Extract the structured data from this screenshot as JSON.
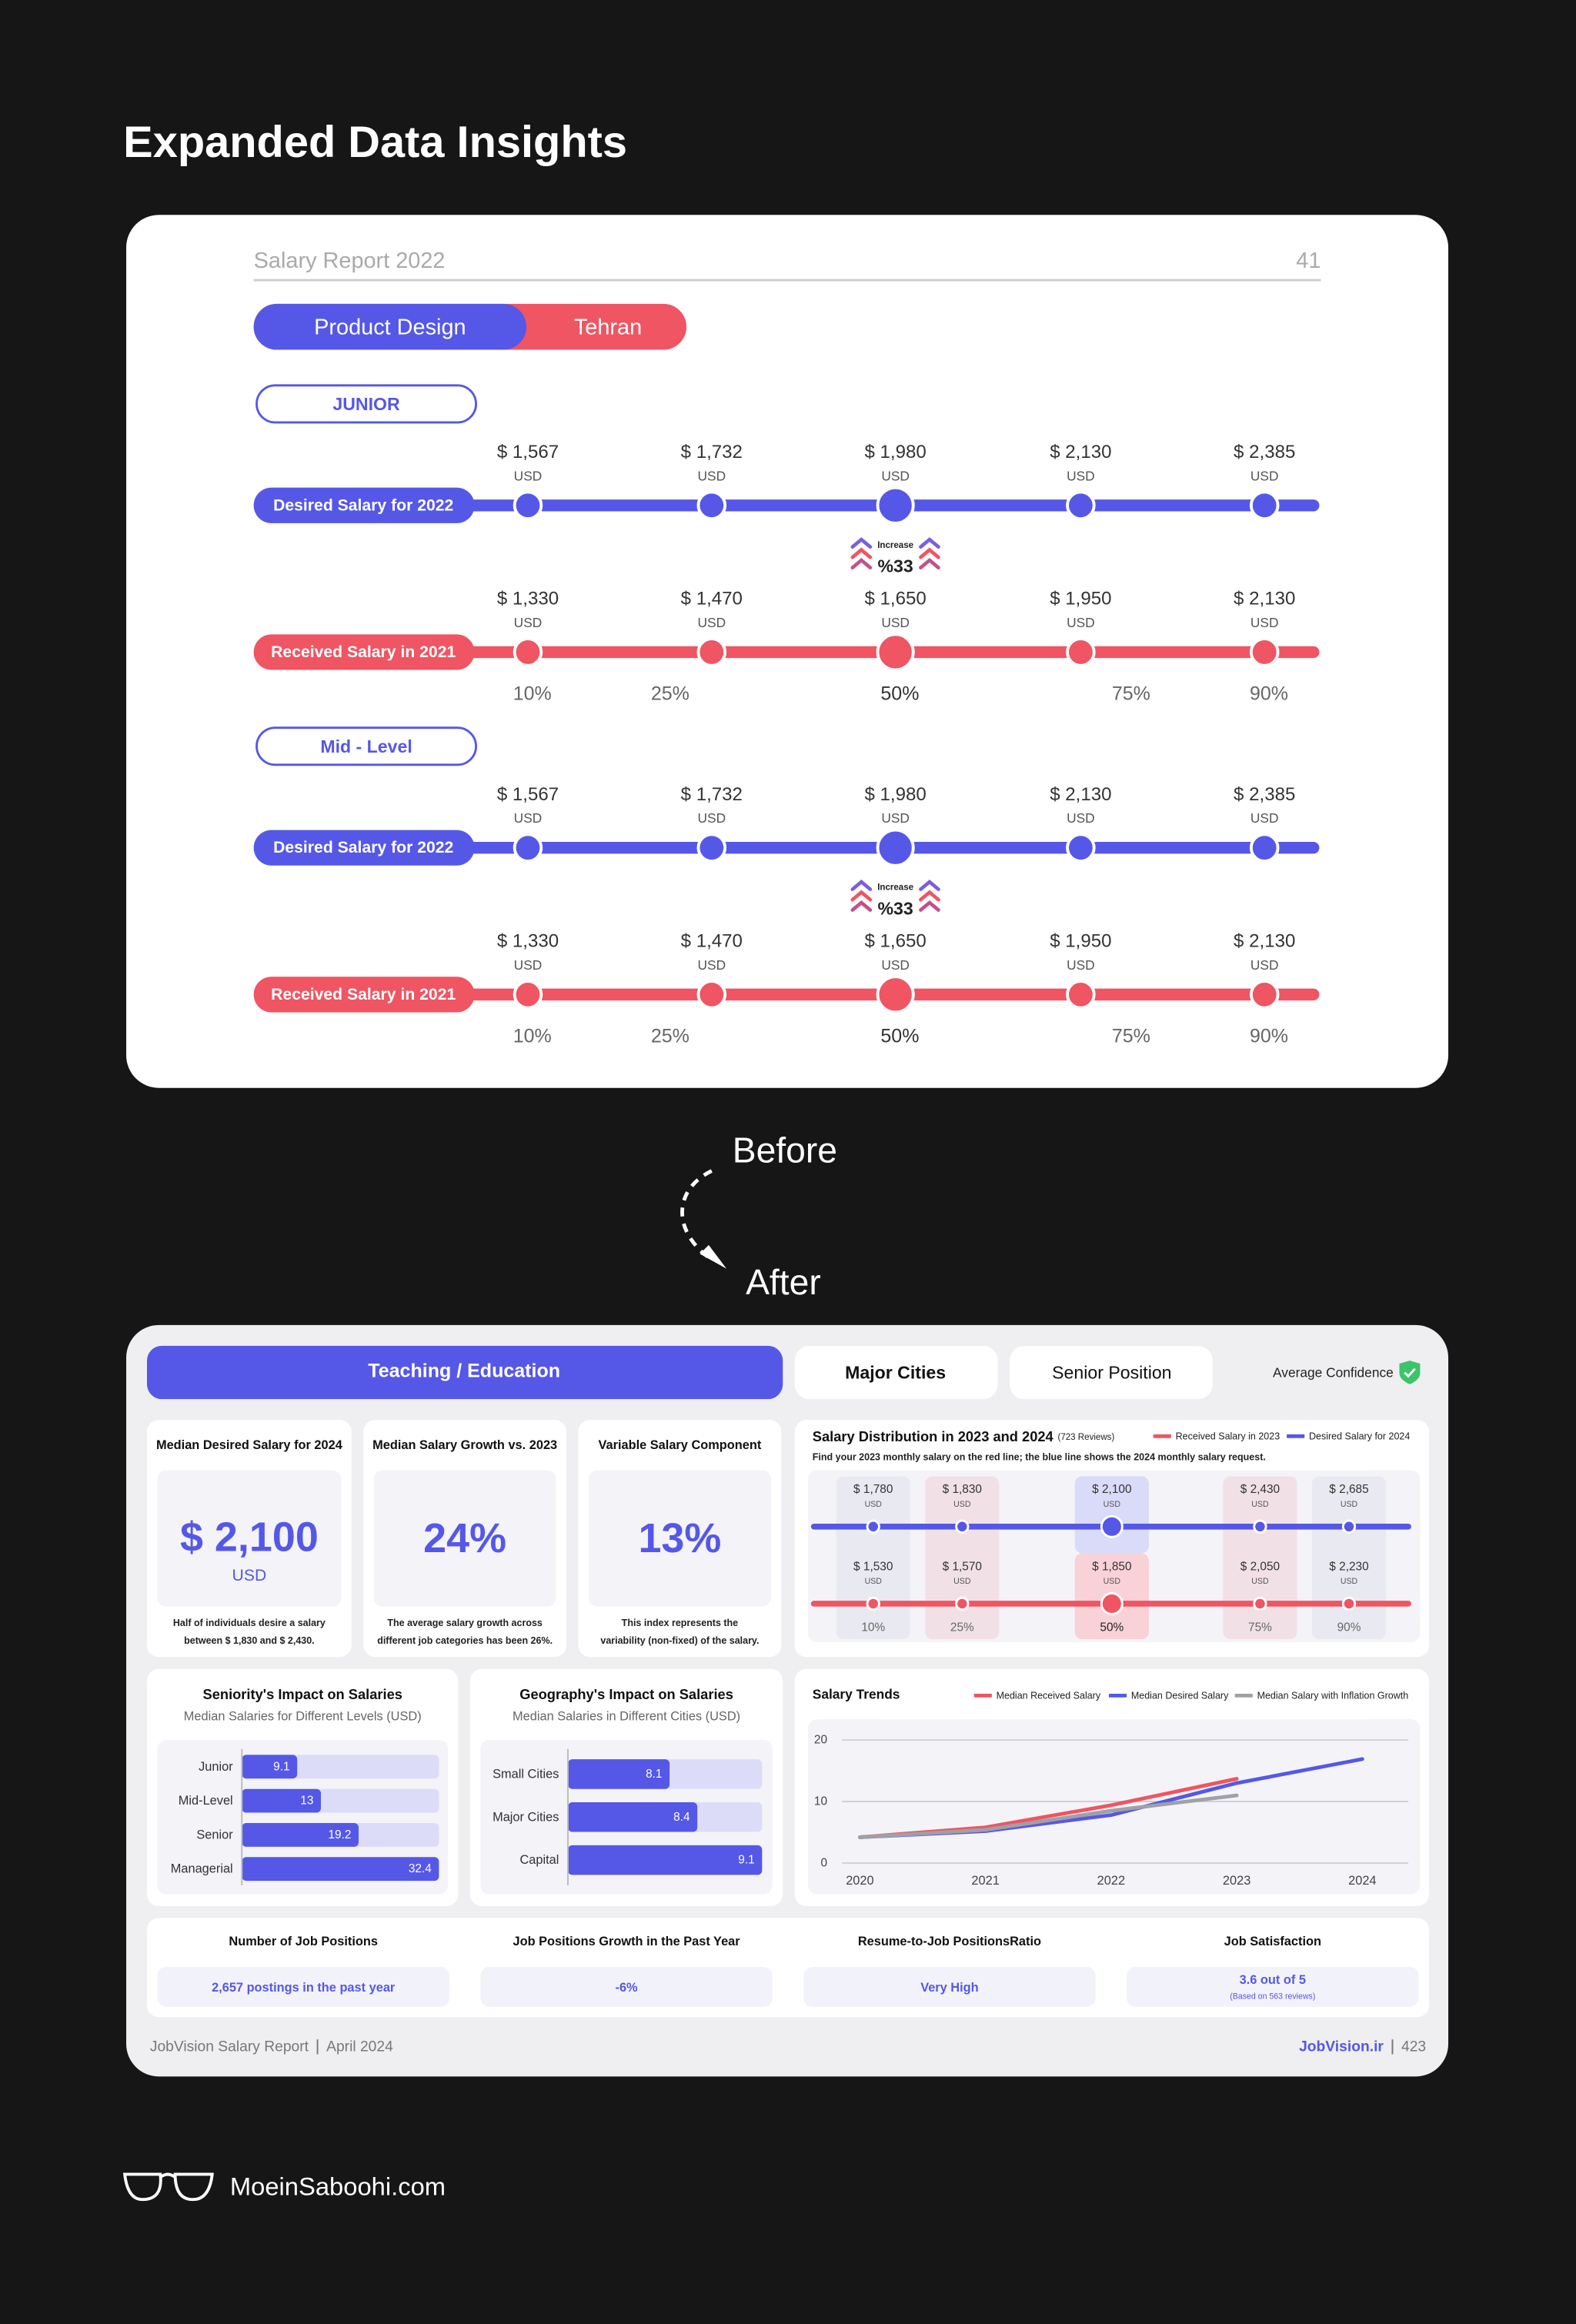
{
  "page_title": "Expanded Data Insights",
  "before": {
    "report_title": "Salary Report 2022",
    "page_number": "41",
    "tabs": [
      "Product Design",
      "Tehran"
    ],
    "currency": "USD",
    "percentiles": [
      "10%",
      "25%",
      "50%",
      "75%",
      "90%"
    ],
    "sections": [
      {
        "level": "JUNIOR",
        "desired_label": "Desired Salary for 2022",
        "desired": [
          "$ 1,567",
          "$ 1,732",
          "$ 1,980",
          "$ 2,130",
          "$ 2,385"
        ],
        "increase_label": "Increase",
        "increase_value": "%33",
        "received_label": "Received Salary in 2021",
        "received": [
          "$ 1,330",
          "$ 1,470",
          "$ 1,650",
          "$ 1,950",
          "$ 2,130"
        ]
      },
      {
        "level": "Mid - Level",
        "desired_label": "Desired Salary for 2022",
        "desired": [
          "$ 1,567",
          "$ 1,732",
          "$ 1,980",
          "$ 2,130",
          "$ 2,385"
        ],
        "increase_label": "Increase",
        "increase_value": "%33",
        "received_label": "Received Salary in 2021",
        "received": [
          "$ 1,330",
          "$ 1,470",
          "$ 1,650",
          "$ 1,950",
          "$ 2,130"
        ]
      }
    ]
  },
  "before_label": "Before",
  "after_label": "After",
  "after": {
    "tabs": [
      "Teaching / Education",
      "Major Cities",
      "Senior Position"
    ],
    "confidence": "Average Confidence",
    "cards": [
      {
        "title": "Median Desired Salary for 2024",
        "value": "$ 2,100",
        "unit": "USD",
        "note": [
          "Half of individuals desire a salary",
          "between $ 1,830 and $ 2,430."
        ]
      },
      {
        "title": "Median Salary Growth vs. 2023",
        "value": "24%",
        "note": [
          "The average salary growth across",
          "different job categories has been 26%."
        ]
      },
      {
        "title": "Variable Salary Component",
        "value": "13%",
        "note": [
          "This index represents the",
          "variability (non-fixed) of the salary."
        ]
      }
    ],
    "distribution": {
      "title": "Salary Distribution in 2023 and 2024",
      "reviews": "(723 Reviews)",
      "subtitle": "Find your 2023 monthly salary on the red line; the blue line shows the 2024 monthly salary request.",
      "legend": [
        "Received Salary in 2023",
        "Desired Salary for 2024"
      ],
      "currency": "USD",
      "desired": [
        "$ 1,780",
        "$ 1,830",
        "$ 2,100",
        "$ 2,430",
        "$ 2,685"
      ],
      "received": [
        "$ 1,530",
        "$ 1,570",
        "$ 1,850",
        "$ 2,050",
        "$ 2,230"
      ],
      "percentiles": [
        "10%",
        "25%",
        "50%",
        "75%",
        "90%"
      ]
    },
    "seniority": {
      "type": "bar",
      "title": "Seniority's Impact on Salaries",
      "subtitle": "Median Salaries for Different Levels (USD)",
      "categories": [
        "Junior",
        "Mid-Level",
        "Senior",
        "Managerial"
      ],
      "values": [
        9.1,
        13,
        19.2,
        32.4
      ],
      "xlim": [
        0,
        32.4
      ],
      "color": "#5558e6"
    },
    "geography": {
      "type": "bar",
      "title": "Geography's Impact on Salaries",
      "subtitle": "Median Salaries in Different Cities (USD)",
      "categories": [
        "Small Cities",
        "Major Cities",
        "Capital"
      ],
      "values": [
        8.1,
        8.4,
        9.1
      ],
      "xlim": [
        7,
        9.1
      ],
      "color": "#5558e6"
    },
    "trends": {
      "type": "line",
      "title": "Salary Trends",
      "x": [
        2020,
        2021,
        2022,
        2023,
        2024
      ],
      "xlim": [
        2020,
        2024
      ],
      "xticks": [
        2020,
        2021,
        2022,
        2023,
        2024
      ],
      "ylim": [
        0,
        22
      ],
      "yticks": [
        0,
        10,
        20
      ],
      "grid": true,
      "series": [
        {
          "name": "Median Received Salary",
          "color": "#ef5562",
          "values": [
            4.2,
            5.8,
            9.4,
            13.7,
            null
          ]
        },
        {
          "name": "Median Desired Salary",
          "color": "#5558e6",
          "values": [
            4.2,
            5.2,
            7.8,
            13,
            16.9
          ]
        },
        {
          "name": "Median Salary with Inflation Growth",
          "color": "#a0a0a6",
          "values": [
            4.2,
            5.4,
            8.5,
            11,
            null
          ]
        }
      ]
    },
    "stats": [
      {
        "title": "Number of Job Positions",
        "value": "2,657 postings in the past year"
      },
      {
        "title": "Job Positions Growth in the Past Year",
        "value": "-6%"
      },
      {
        "title": "Resume-to-Job PositionsRatio",
        "value": "Very High"
      },
      {
        "title": "Job Satisfaction",
        "value": "3.6 out of 5",
        "note": "(Based on 563 reviews)"
      }
    ],
    "footer": {
      "report": "JobVision Salary Report",
      "date": "April 2024",
      "site": "JobVision.ir",
      "page": "423"
    }
  },
  "brand": "MoeinSaboohi.com"
}
